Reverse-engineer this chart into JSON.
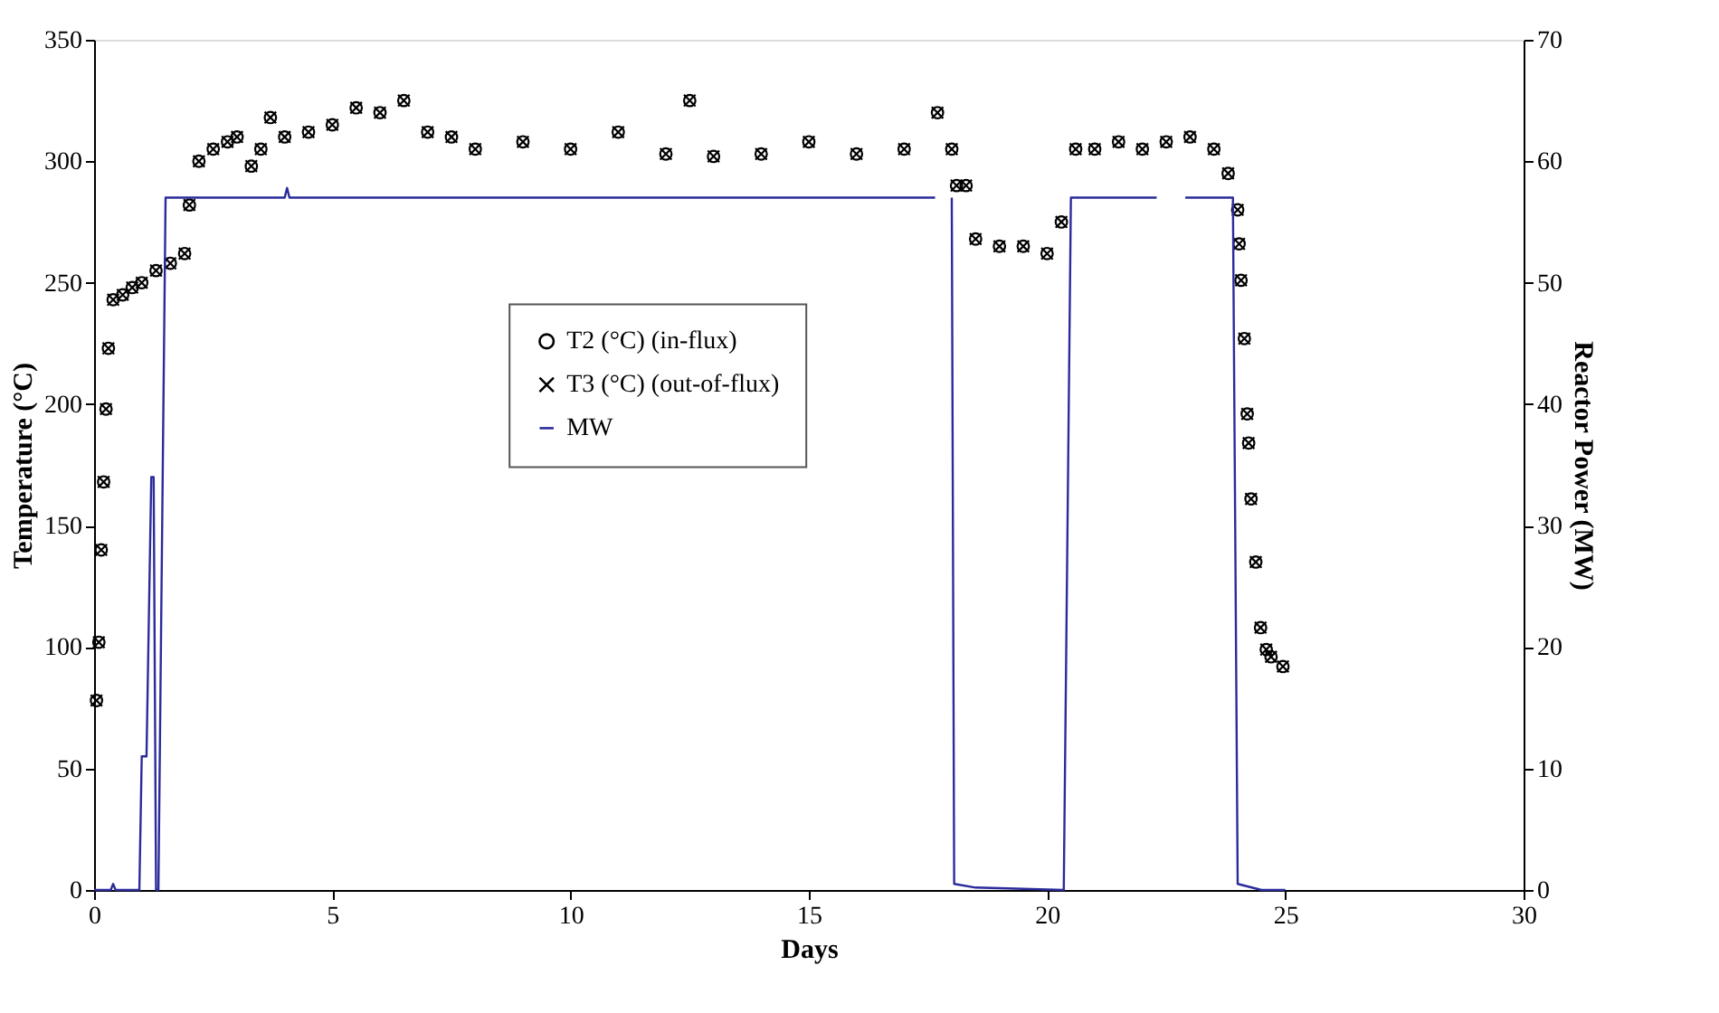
{
  "chart_data": {
    "type": "scatter",
    "xlabel": "Days",
    "ylabel": "Temperature (°C)",
    "y2label": "Reactor Power (MW)",
    "xlim": [
      0,
      30
    ],
    "xticks": [
      0,
      5,
      10,
      15,
      20,
      25,
      30
    ],
    "ylim": [
      0,
      350
    ],
    "yticks": [
      0,
      50,
      100,
      150,
      200,
      250,
      300,
      350
    ],
    "y2lim": [
      0,
      70
    ],
    "y2ticks": [
      0,
      10,
      20,
      30,
      40,
      50,
      60,
      70
    ],
    "grid": false,
    "legend": "center",
    "series": [
      {
        "name": "T2 (°C) (in-flux)",
        "marker": "circle",
        "color": "#000000",
        "x": [
          0.05,
          0.1,
          0.15,
          0.2,
          0.25,
          0.3,
          0.4,
          0.6,
          0.8,
          1.0,
          1.3,
          1.6,
          1.9,
          2.0,
          2.2,
          2.5,
          2.8,
          3.0,
          3.3,
          3.5,
          3.7,
          4.0,
          4.5,
          5.0,
          5.5,
          6.0,
          6.5,
          7.0,
          7.5,
          8.0,
          9.0,
          10.0,
          11.0,
          12.0,
          12.5,
          13.0,
          14.0,
          15.0,
          16.0,
          17.0,
          17.7,
          18.0,
          18.1,
          18.3,
          18.5,
          19.0,
          19.5,
          20.0,
          20.3,
          20.6,
          21.0,
          21.5,
          22.0,
          22.5,
          23.0,
          23.5,
          23.8,
          24.0,
          24.03,
          24.07,
          24.14,
          24.2,
          24.23,
          24.28,
          24.38,
          24.48,
          24.6,
          24.7,
          24.95
        ],
        "values": [
          78,
          102,
          140,
          168,
          198,
          223,
          243,
          245,
          248,
          250,
          255,
          258,
          262,
          282,
          300,
          305,
          308,
          310,
          298,
          305,
          318,
          310,
          312,
          315,
          322,
          320,
          325,
          312,
          310,
          305,
          308,
          305,
          312,
          303,
          325,
          302,
          303,
          308,
          303,
          305,
          320,
          305,
          290,
          290,
          268,
          265,
          265,
          262,
          275,
          305,
          305,
          308,
          305,
          308,
          310,
          305,
          295,
          280,
          266,
          251,
          227,
          196,
          184,
          161,
          135,
          108,
          99,
          96,
          92
        ]
      },
      {
        "name": "T3 (°C) (out-of-flux)",
        "marker": "cross",
        "color": "#000000",
        "x": [
          0.05,
          0.1,
          0.15,
          0.2,
          0.25,
          0.3,
          0.4,
          0.6,
          0.8,
          1.0,
          1.3,
          1.6,
          1.9,
          2.0,
          2.2,
          2.5,
          2.8,
          3.0,
          3.3,
          3.5,
          3.7,
          4.0,
          4.5,
          5.0,
          5.5,
          6.0,
          6.5,
          7.0,
          7.5,
          8.0,
          9.0,
          10.0,
          11.0,
          12.0,
          12.5,
          13.0,
          14.0,
          15.0,
          16.0,
          17.0,
          17.7,
          18.0,
          18.1,
          18.3,
          18.5,
          19.0,
          19.5,
          20.0,
          20.3,
          20.6,
          21.0,
          21.5,
          22.0,
          22.5,
          23.0,
          23.5,
          23.8,
          24.0,
          24.03,
          24.07,
          24.14,
          24.2,
          24.23,
          24.28,
          24.38,
          24.48,
          24.6,
          24.7,
          24.95
        ],
        "values": [
          78,
          102,
          140,
          168,
          198,
          223,
          243,
          245,
          248,
          250,
          255,
          258,
          262,
          282,
          300,
          305,
          308,
          310,
          298,
          305,
          318,
          310,
          312,
          315,
          322,
          320,
          325,
          312,
          310,
          305,
          308,
          305,
          312,
          303,
          325,
          302,
          303,
          308,
          303,
          305,
          320,
          305,
          290,
          290,
          268,
          265,
          265,
          262,
          275,
          305,
          305,
          308,
          305,
          308,
          310,
          305,
          295,
          280,
          266,
          251,
          227,
          196,
          184,
          161,
          135,
          108,
          99,
          96,
          92
        ]
      },
      {
        "name": "MW",
        "type": "line",
        "axis": "y2",
        "color": "#2b2b9b",
        "x": [
          0,
          0.35,
          0.4,
          0.45,
          0.95,
          1.0,
          1.1,
          1.2,
          1.25,
          1.3,
          1.35,
          1.5,
          4.0,
          4.05,
          4.1,
          17.65,
          17.7,
          18.0,
          18.05,
          18.5,
          20.35,
          20.5,
          22.3,
          22.35,
          22.9,
          23.9,
          24.0,
          24.5,
          25.0
        ],
        "values": [
          0,
          0,
          0.5,
          0,
          0,
          11,
          11,
          34,
          34,
          0,
          0,
          57,
          57,
          57.8,
          57,
          57,
          null,
          57,
          0.5,
          0.2,
          0,
          57,
          57,
          null,
          57,
          57,
          0.5,
          0,
          0
        ]
      }
    ]
  }
}
